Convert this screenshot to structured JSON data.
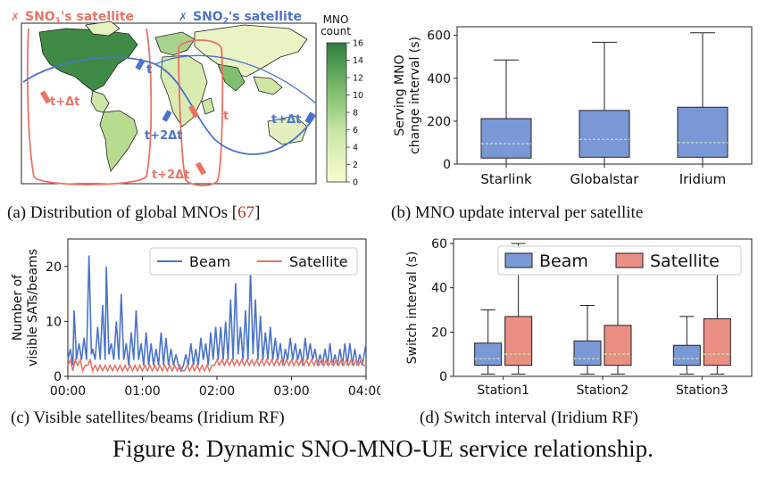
{
  "figure_title": "Figure 8: Dynamic SNO-MNO-UE service relationship.",
  "colors": {
    "beam_blue": "#4a74c9",
    "sat_red": "#e97466",
    "box_blue": "#7b98d6",
    "box_red": "#ea8f84",
    "median": "#c8e6b0"
  },
  "captions": {
    "a_text": "(a) Distribution of global MNOs [",
    "a_cite": "67",
    "a_close": "]",
    "b": "(b) MNO update interval per satellite",
    "c": "(c)  Visible satellites/beams (Iridium RF)",
    "d": "(d) Switch interval (Iridium RF)"
  },
  "map": {
    "label_sno1": "SNO",
    "label_sno1_sub": "1",
    "label_sno1_suffix": "'s satellite",
    "label_sno2": "SNO",
    "label_sno2_sub": "2",
    "label_sno2_suffix": "'s satellite",
    "colorbar_title_1": "MNO",
    "colorbar_title_2": "count",
    "colorbar_ticks": [
      "16",
      "14",
      "12",
      "10",
      "8",
      "6",
      "4",
      "2",
      "0"
    ],
    "time_labels": {
      "red_t_dt": "t+Δt",
      "red_t": "t",
      "red_t_2dt": "t+2Δt",
      "blue_t": "t",
      "blue_t_dt": "t+Δt",
      "blue_t_2dt": "t+2Δt"
    }
  },
  "chart_data": [
    {
      "id": "b",
      "type": "box",
      "ylabel": "Serving MNO change interval (s)",
      "ylabel_lines": [
        "Serving MNO",
        "change interval (s)"
      ],
      "ylim": [
        0,
        640
      ],
      "yticks": [
        0,
        200,
        400,
        600
      ],
      "categories": [
        "Starlink",
        "Globalstar",
        "Iridium"
      ],
      "boxes": [
        {
          "whisker_low": 0,
          "q1": 28,
          "median": 95,
          "q3": 212,
          "whisker_high": 485
        },
        {
          "whisker_low": 0,
          "q1": 32,
          "median": 115,
          "q3": 250,
          "whisker_high": 568
        },
        {
          "whisker_low": 0,
          "q1": 32,
          "median": 100,
          "q3": 265,
          "whisker_high": 612
        }
      ]
    },
    {
      "id": "c",
      "type": "line",
      "ylabel_lines": [
        "Number of",
        "visible SATs/beams"
      ],
      "ylim": [
        0,
        25
      ],
      "yticks": [
        0,
        10,
        20
      ],
      "xlim": [
        0,
        240
      ],
      "xticks": [
        "00:00",
        "01:00",
        "02:00",
        "03:00",
        "04:00"
      ],
      "legend": "top-right",
      "series": [
        {
          "name": "Beam",
          "x": [
            0,
            2,
            4,
            5,
            7,
            9,
            11,
            13,
            15,
            17,
            19,
            20,
            22,
            24,
            26,
            28,
            30,
            31,
            33,
            35,
            37,
            39,
            41,
            43,
            45,
            47,
            49,
            51,
            53,
            55,
            57,
            59,
            61,
            63,
            65,
            67,
            69,
            71,
            73,
            75,
            77,
            79,
            81,
            83,
            85,
            87,
            89,
            91,
            93,
            95,
            97,
            99,
            101,
            103,
            105,
            107,
            109,
            111,
            113,
            115,
            117,
            119,
            121,
            123,
            125,
            127,
            129,
            131,
            133,
            135,
            137,
            139,
            141,
            143,
            145,
            147,
            149,
            151,
            153,
            155,
            157,
            159,
            161,
            163,
            165,
            167,
            169,
            171,
            173,
            175,
            177,
            179,
            181,
            183,
            185,
            187,
            189,
            191,
            193,
            195,
            197,
            199,
            201,
            203,
            205,
            207,
            209,
            211,
            213,
            215,
            217,
            219,
            221,
            223,
            225,
            227,
            229,
            231,
            233,
            235,
            237,
            240
          ],
          "values": [
            3,
            5,
            2,
            12,
            3,
            6,
            3,
            7,
            3,
            22,
            4,
            5,
            3,
            9,
            3,
            13,
            3,
            20,
            4,
            6,
            3,
            10,
            3,
            15,
            3,
            6,
            2,
            8,
            3,
            12,
            3,
            6,
            2,
            8,
            2,
            6,
            2,
            5,
            2,
            8,
            2,
            7,
            2,
            5,
            2,
            4,
            2,
            1,
            2,
            4,
            2,
            6,
            2,
            5,
            2,
            7,
            3,
            6,
            2,
            8,
            3,
            9,
            3,
            9,
            3,
            10,
            3,
            14,
            3,
            17,
            4,
            9,
            3,
            12,
            3,
            19,
            4,
            14,
            3,
            11,
            3,
            8,
            3,
            9,
            3,
            7,
            3,
            6,
            2,
            5,
            3,
            7,
            3,
            6,
            3,
            5,
            2,
            7,
            3,
            6,
            3,
            5,
            2,
            4,
            2,
            5,
            2,
            6,
            2,
            4,
            2,
            5,
            2,
            6,
            2,
            6,
            2,
            5,
            2,
            4,
            2,
            6
          ]
        },
        {
          "name": "Satellite",
          "x": [
            0,
            2,
            4,
            6,
            8,
            10,
            12,
            14,
            16,
            18,
            20,
            22,
            24,
            26,
            28,
            30,
            32,
            34,
            36,
            38,
            40,
            42,
            44,
            46,
            48,
            50,
            52,
            54,
            56,
            58,
            60,
            62,
            64,
            66,
            68,
            70,
            72,
            74,
            76,
            78,
            80,
            82,
            84,
            86,
            88,
            90,
            92,
            94,
            96,
            98,
            100,
            102,
            104,
            106,
            108,
            110,
            112,
            114,
            116,
            118,
            120,
            122,
            124,
            126,
            128,
            130,
            132,
            134,
            136,
            138,
            140,
            142,
            144,
            146,
            148,
            150,
            152,
            154,
            156,
            158,
            160,
            162,
            164,
            166,
            168,
            170,
            172,
            174,
            176,
            178,
            180,
            182,
            184,
            186,
            188,
            190,
            192,
            194,
            196,
            198,
            200,
            202,
            204,
            206,
            208,
            210,
            212,
            214,
            216,
            218,
            220,
            222,
            224,
            226,
            228,
            230,
            232,
            234,
            236,
            238,
            240
          ],
          "values": [
            2,
            3,
            1,
            3,
            2,
            3,
            1,
            2,
            2,
            3,
            1,
            2,
            1,
            2,
            1,
            2,
            1,
            2,
            1,
            2,
            1,
            2,
            1,
            2,
            1,
            2,
            1,
            2,
            1,
            2,
            1,
            2,
            1,
            2,
            1,
            2,
            1,
            2,
            1,
            2,
            1,
            2,
            1,
            2,
            1,
            2,
            1,
            1,
            2,
            1,
            2,
            1,
            2,
            1,
            2,
            1,
            2,
            1,
            2,
            2,
            3,
            2,
            3,
            2,
            3,
            2,
            3,
            2,
            3,
            2,
            3,
            2,
            3,
            2,
            3,
            2,
            3,
            2,
            3,
            2,
            3,
            2,
            3,
            2,
            3,
            2,
            3,
            2,
            3,
            2,
            3,
            2,
            3,
            2,
            3,
            2,
            3,
            2,
            3,
            2,
            3,
            2,
            3,
            2,
            3,
            2,
            3,
            2,
            3,
            2,
            3,
            2,
            3,
            2,
            3,
            2,
            3,
            2,
            3,
            2,
            2
          ]
        }
      ]
    },
    {
      "id": "d",
      "type": "box",
      "ylabel": "Switch interval (s)",
      "ylim": [
        0,
        62
      ],
      "yticks": [
        0,
        20,
        40,
        60
      ],
      "categories": [
        "Station1",
        "Station2",
        "Station3"
      ],
      "legend": "top-right",
      "series": [
        {
          "name": "Beam",
          "boxes": [
            {
              "whisker_low": 1,
              "q1": 5,
              "median": 8,
              "q3": 15,
              "whisker_high": 30
            },
            {
              "whisker_low": 1,
              "q1": 5,
              "median": 8,
              "q3": 16,
              "whisker_high": 32
            },
            {
              "whisker_low": 1,
              "q1": 5,
              "median": 8,
              "q3": 14,
              "whisker_high": 27
            }
          ]
        },
        {
          "name": "Satellite",
          "boxes": [
            {
              "whisker_low": 1,
              "q1": 5,
              "median": 10,
              "q3": 27,
              "whisker_high": 60
            },
            {
              "whisker_low": 1,
              "q1": 5,
              "median": 10,
              "q3": 23,
              "whisker_high": 52
            },
            {
              "whisker_low": 1,
              "q1": 5,
              "median": 10,
              "q3": 26,
              "whisker_high": 58
            }
          ]
        }
      ]
    }
  ]
}
